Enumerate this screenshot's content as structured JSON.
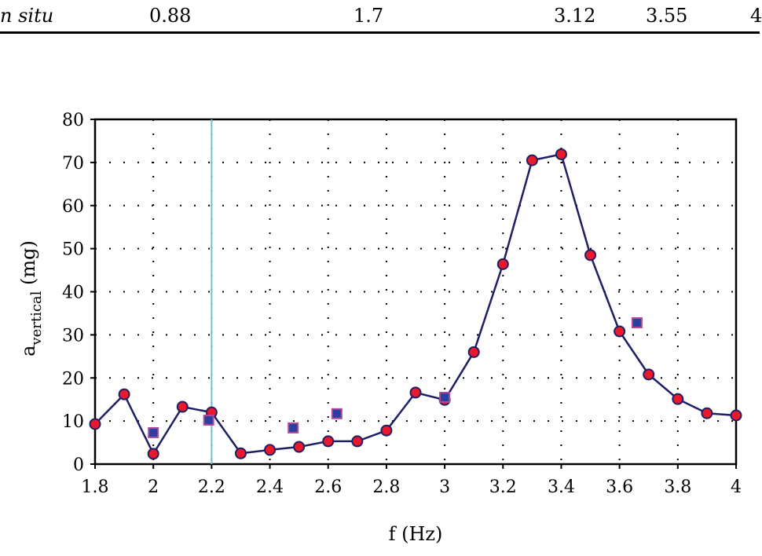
{
  "table_row": {
    "label": "n situ",
    "values": [
      "0.88",
      "1.7",
      "3.12",
      "3.55",
      "4"
    ]
  },
  "chart_data": {
    "type": "line",
    "title": "",
    "xlabel": "f (Hz)",
    "ylabel_main": "a",
    "ylabel_sub": "vertical",
    "ylabel_unit": " (mg)",
    "xlim": [
      1.8,
      4.0
    ],
    "ylim": [
      0,
      80
    ],
    "xticks": [
      "1.8",
      "2",
      "2.2",
      "2.4",
      "2.6",
      "2.8",
      "3",
      "3.2",
      "3.4",
      "3.6",
      "3.8",
      "4"
    ],
    "yticks": [
      "0",
      "10",
      "20",
      "30",
      "40",
      "50",
      "60",
      "70",
      "80"
    ],
    "grid": "dotted",
    "vertical_marker_x": 2.2,
    "series": [
      {
        "name": "circles",
        "style": "line+circle",
        "x": [
          1.8,
          1.9,
          2.0,
          2.1,
          2.2,
          2.3,
          2.4,
          2.5,
          2.6,
          2.7,
          2.8,
          2.9,
          3.0,
          3.1,
          3.2,
          3.3,
          3.4,
          3.5,
          3.6,
          3.7,
          3.8,
          3.9,
          4.0
        ],
        "y": [
          9.3,
          16.2,
          2.4,
          13.3,
          12.0,
          2.5,
          3.3,
          4.0,
          5.3,
          5.3,
          7.8,
          16.6,
          14.9,
          26.0,
          46.4,
          70.5,
          71.9,
          48.5,
          30.8,
          20.8,
          15.1,
          11.8,
          11.3
        ]
      },
      {
        "name": "squares",
        "style": "square",
        "x": [
          2.0,
          2.19,
          2.48,
          2.63,
          3.0,
          3.66
        ],
        "y": [
          7.3,
          10.2,
          8.4,
          11.7,
          15.5,
          32.8
        ]
      }
    ],
    "colors": {
      "line": "#1f1f66",
      "circle_fill": "#e8192c",
      "square_fill": "#2b3f9e",
      "square_edge": "#b04a9a",
      "marker_line": "#6cc6d0"
    }
  }
}
